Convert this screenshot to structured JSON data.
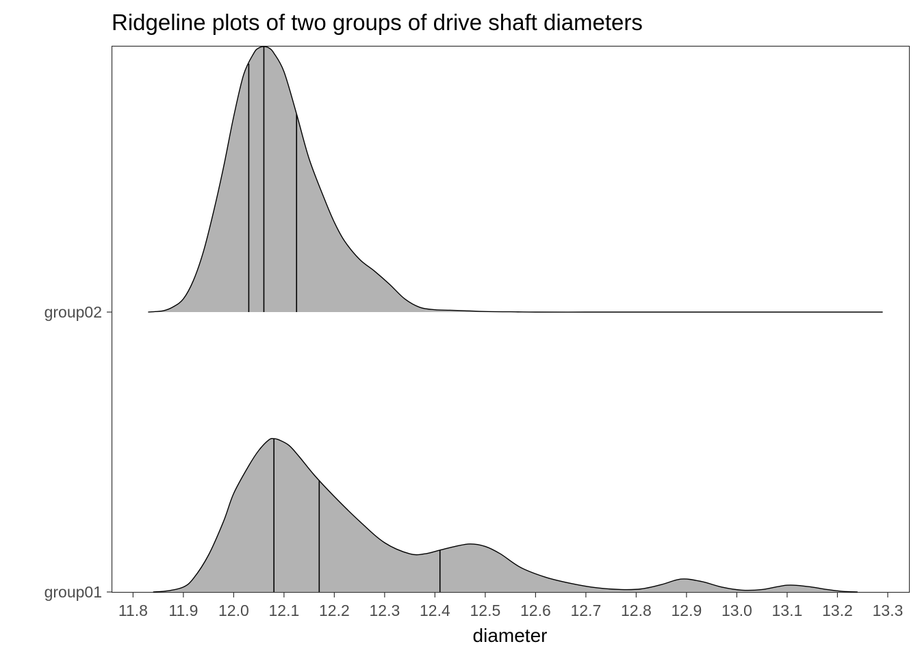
{
  "chart_data": {
    "type": "ridgeline",
    "title": "Ridgeline plots of two groups of drive shaft diameters",
    "xlabel": "diameter",
    "ylabel": "",
    "xlim": [
      11.758,
      13.343
    ],
    "x_ticks": [
      "11.8",
      "11.9",
      "12.0",
      "12.1",
      "12.2",
      "12.3",
      "12.4",
      "12.5",
      "12.6",
      "12.7",
      "12.8",
      "12.9",
      "13.0",
      "13.1",
      "13.2",
      "13.3"
    ],
    "grid": false,
    "fill_color": "#b3b3b3",
    "line_color": "#000000",
    "series": [
      {
        "name": "group01",
        "quantiles": [
          12.08,
          12.17,
          12.41
        ],
        "density_x": [
          11.84,
          11.87,
          11.9,
          11.92,
          11.95,
          11.98,
          12.0,
          12.03,
          12.05,
          12.07,
          12.08,
          12.09,
          12.11,
          12.13,
          12.16,
          12.2,
          12.25,
          12.3,
          12.35,
          12.38,
          12.41,
          12.44,
          12.47,
          12.5,
          12.53,
          12.57,
          12.62,
          12.67,
          12.72,
          12.77,
          12.81,
          12.85,
          12.89,
          12.93,
          12.97,
          13.01,
          13.05,
          13.1,
          13.14,
          13.18,
          13.21,
          13.24
        ],
        "density_y": [
          0.0,
          0.02,
          0.08,
          0.22,
          0.6,
          1.15,
          1.6,
          2.05,
          2.3,
          2.47,
          2.49,
          2.47,
          2.38,
          2.2,
          1.9,
          1.55,
          1.15,
          0.8,
          0.62,
          0.62,
          0.68,
          0.74,
          0.78,
          0.74,
          0.62,
          0.4,
          0.24,
          0.14,
          0.07,
          0.04,
          0.05,
          0.12,
          0.21,
          0.17,
          0.08,
          0.03,
          0.04,
          0.11,
          0.09,
          0.04,
          0.01,
          0.0
        ]
      },
      {
        "name": "group02",
        "quantiles": [
          12.03,
          12.06,
          12.125
        ],
        "density_x": [
          11.83,
          11.86,
          11.88,
          11.9,
          11.92,
          11.94,
          11.96,
          11.98,
          12.0,
          12.02,
          12.04,
          12.05,
          12.06,
          12.07,
          12.08,
          12.1,
          12.125,
          12.15,
          12.18,
          12.2,
          12.22,
          12.25,
          12.28,
          12.31,
          12.34,
          12.37,
          12.4,
          12.43,
          12.46,
          12.5,
          12.55,
          12.6,
          12.7,
          12.8,
          12.9,
          13.0,
          13.1,
          13.2,
          13.29
        ],
        "density_y": [
          0.0,
          0.05,
          0.2,
          0.5,
          1.2,
          2.3,
          3.8,
          5.5,
          7.4,
          9.0,
          9.8,
          10.0,
          10.05,
          10.0,
          9.8,
          9.1,
          7.5,
          5.8,
          4.3,
          3.4,
          2.7,
          2.0,
          1.55,
          1.05,
          0.5,
          0.18,
          0.09,
          0.07,
          0.05,
          0.02,
          0.01,
          0.0,
          0.0,
          0.0,
          0.0,
          0.0,
          0.0,
          0.0,
          0.0
        ]
      }
    ]
  }
}
